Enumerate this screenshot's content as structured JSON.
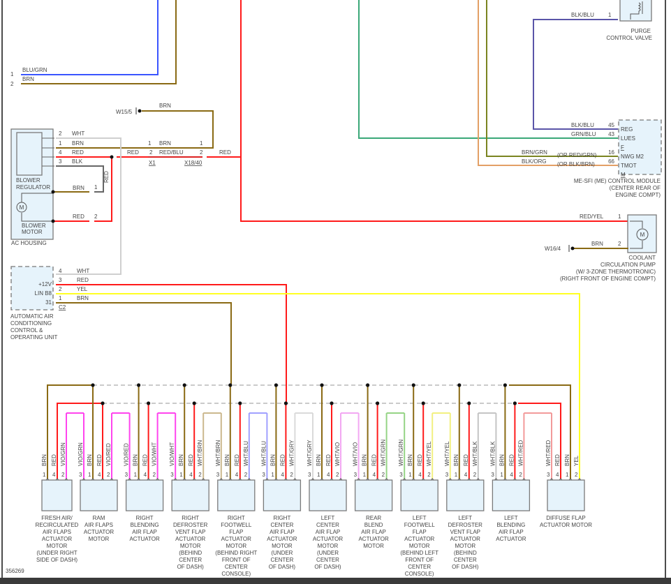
{
  "diagram_id": "356269",
  "colors": {
    "BRN": "#8a6a14",
    "RED": "#ff1a1a",
    "VIO": "#ff44ee",
    "WHT": "#cfcfcf",
    "BLK": "#666666",
    "YEL": "#ffff22",
    "BLU_GRN": "#3a55ff",
    "GRN_BLU": "#3aa878",
    "BLK_BLU": "#5a55a8",
    "BRN_GRN": "#7a8420",
    "BLK_ORG": "#e3a066",
    "WHT_BRN": "#cbb88e",
    "WHT_BLU": "#a0a0ff",
    "WHT_GRY": "#dadada",
    "WHT_VIO": "#f2a8f2",
    "WHT_GRN": "#95d485",
    "WHT_YEL": "#f2f080",
    "WHT_BLK": "#c4c4c4",
    "WHT_RED": "#f29a9a",
    "RED_YEL": "#ff2a00",
    "bus": "#aaaaaa"
  },
  "top_left": {
    "pin1": "1",
    "wire1": "BLU/GRN",
    "pin2": "2",
    "wire2": "BRN"
  },
  "ground1": {
    "label": "W15/5",
    "wire": "BRN"
  },
  "ac_housing": {
    "title": "AC HOUSING",
    "regulator": [
      "BLOWER",
      "REGULATOR"
    ],
    "motor": [
      "BLOWER",
      "MOTOR"
    ],
    "motor_symbol": "M",
    "pins": [
      {
        "pin": "2",
        "wire": "WHT"
      },
      {
        "pin": "1",
        "wire": "BRN"
      },
      {
        "pin": "4",
        "wire": "RED"
      },
      {
        "pin": "3",
        "wire": "BLK"
      }
    ],
    "motor_pin1": {
      "pin": "1",
      "wire": "BRN"
    },
    "motor_pin2": {
      "pin": "2",
      "wire": "RED"
    },
    "vertical_label": "RED"
  },
  "x1": {
    "name": "X1",
    "pin1": "1",
    "pin2": "2",
    "left_red": "RED",
    "brn": "BRN",
    "redblu": "RED/BLU"
  },
  "x18": {
    "name": "X18/40",
    "pin1": "1",
    "pin2": "2",
    "red": "RED"
  },
  "purge": {
    "name": [
      "PURGE",
      "CONTROL VALVE"
    ],
    "pin": "1",
    "wire": "BLK/BLU"
  },
  "ecm": {
    "name": [
      "ME-SFI (ME) CONTROL MODULE",
      "(CENTER REAR OF",
      "ENGINE COMPT)"
    ],
    "rows": [
      {
        "wire": "BLK/BLU",
        "alt": "",
        "pin": "45",
        "signal": "REG"
      },
      {
        "wire": "GRN/BLU",
        "alt": "",
        "pin": "43",
        "signal": "LUES"
      },
      {
        "wire": "",
        "alt": "",
        "pin": "",
        "signal": "F"
      },
      {
        "wire": "BRN/GRN",
        "alt": "(OR RED/GRN)",
        "pin": "16",
        "signal": "NWG M2"
      },
      {
        "wire": "BLK/ORG",
        "alt": "(OR BLK/BRN)",
        "pin": "66",
        "signal": "TMOT"
      },
      {
        "wire": "",
        "alt": "",
        "pin": "",
        "signal": "M"
      }
    ]
  },
  "pump": {
    "name": [
      "COOLANT",
      "CIRCULATION PUMP",
      "(W/ 3-ZONE THERMOTRONIC)",
      "(RIGHT FRONT OF ENGINE COMPT)"
    ],
    "pin1": "1",
    "wire1": "RED/YEL",
    "pin2": "2",
    "wire2": "BRN",
    "ground": "W16/4",
    "motor_symbol": "M"
  },
  "ac_unit": {
    "name": [
      "AUTOMATIC AIR",
      "CONDITIONING",
      "CONTROL &",
      "OPERATING UNIT"
    ],
    "connector": "C2",
    "pins": [
      {
        "pin": "4",
        "wire": "WHT",
        "signal": ""
      },
      {
        "pin": "3",
        "wire": "RED",
        "signal": "+12V"
      },
      {
        "pin": "2",
        "wire": "YEL",
        "signal": "LIN B8"
      },
      {
        "pin": "1",
        "wire": "BRN",
        "signal": "31"
      }
    ]
  },
  "modules": [
    {
      "name": [
        "FRESH AIR/",
        "RECIRCULATED",
        "AIR FLAPS",
        "ACTUATOR",
        "MOTOR",
        "(UNDER RIGHT",
        "SIDE OF DASH)"
      ],
      "pins": [
        {
          "pin": "1",
          "wire": "BRN"
        },
        {
          "pin": "4",
          "wire": "RED"
        },
        {
          "pin": "2",
          "wire": "VIO/GRN"
        }
      ]
    },
    {
      "name": [
        "RAM",
        "AIR FLAPS",
        "ACTUATOR",
        "MOTOR"
      ],
      "pins": [
        {
          "pin": "3",
          "wire": "VIO/GRN"
        },
        {
          "pin": "1",
          "wire": "BRN"
        },
        {
          "pin": "4",
          "wire": "RED"
        },
        {
          "pin": "2",
          "wire": "VIO/RED"
        }
      ]
    },
    {
      "name": [
        "RIGHT",
        "BLENDING",
        "AIR FLAP",
        "ACTUATOR"
      ],
      "pins": [
        {
          "pin": "3",
          "wire": "VIO/RED"
        },
        {
          "pin": "1",
          "wire": "BRN"
        },
        {
          "pin": "4",
          "wire": "RED"
        },
        {
          "pin": "2",
          "wire": "VIO/WHT"
        }
      ]
    },
    {
      "name": [
        "RIGHT",
        "DEFROSTER",
        "VENT FLAP",
        "ACTUATOR",
        "MOTOR",
        "(BEHIND",
        "CENTER",
        "OF DASH)"
      ],
      "pins": [
        {
          "pin": "3",
          "wire": "VIO/WHT"
        },
        {
          "pin": "1",
          "wire": "BRN"
        },
        {
          "pin": "4",
          "wire": "RED"
        },
        {
          "pin": "2",
          "wire": "WHT/BRN"
        }
      ]
    },
    {
      "name": [
        "RIGHT",
        "FOOTWELL",
        "FLAP",
        "ACTUATOR",
        "MOTOR",
        "(BEHIND RIGHT",
        "FRONT OF",
        "CENTER",
        "CONSOLE)"
      ],
      "pins": [
        {
          "pin": "3",
          "wire": "WHT/BRN"
        },
        {
          "pin": "1",
          "wire": "BRN"
        },
        {
          "pin": "4",
          "wire": "RED"
        },
        {
          "pin": "2",
          "wire": "WHT/BLU"
        }
      ]
    },
    {
      "name": [
        "RIGHT",
        "CENTER",
        "AIR FLAP",
        "ACTUATOR",
        "MOTOR",
        "(UNDER",
        "CENTER",
        "OF DASH)"
      ],
      "pins": [
        {
          "pin": "3",
          "wire": "WHT/BLU"
        },
        {
          "pin": "1",
          "wire": "BRN"
        },
        {
          "pin": "4",
          "wire": "RED"
        },
        {
          "pin": "2",
          "wire": "WHT/GRY"
        }
      ]
    },
    {
      "name": [
        "LEFT",
        "CENTER",
        "AIR FLAP",
        "ACTUATOR",
        "MOTOR",
        "(UNDER",
        "CENTER",
        "OF DASH)"
      ],
      "pins": [
        {
          "pin": "3",
          "wire": "WHT/GRY"
        },
        {
          "pin": "1",
          "wire": "BRN"
        },
        {
          "pin": "4",
          "wire": "RED"
        },
        {
          "pin": "2",
          "wire": "WHT/VIO"
        }
      ]
    },
    {
      "name": [
        "REAR",
        "BLEND",
        "AIR FLAP",
        "ACTUATOR",
        "MOTOR"
      ],
      "pins": [
        {
          "pin": "3",
          "wire": "WHT/VIO"
        },
        {
          "pin": "1",
          "wire": "BRN"
        },
        {
          "pin": "4",
          "wire": "RED"
        },
        {
          "pin": "2",
          "wire": "WHT/GRN"
        }
      ]
    },
    {
      "name": [
        "LEFT",
        "FOOTWELL",
        "FLAP",
        "ACTUATOR",
        "MOTOR",
        "(BEHIND LEFT",
        "FRONT OF",
        "CENTER",
        "CONSOLE)"
      ],
      "pins": [
        {
          "pin": "3",
          "wire": "WHT/GRN"
        },
        {
          "pin": "1",
          "wire": "BRN"
        },
        {
          "pin": "4",
          "wire": "RED"
        },
        {
          "pin": "2",
          "wire": "WHT/YEL"
        }
      ]
    },
    {
      "name": [
        "LEFT",
        "DEFROSTER",
        "VENT FLAP",
        "ACTUATOR",
        "MOTOR",
        "(BEHIND",
        "CENTER",
        "OF DASH)"
      ],
      "pins": [
        {
          "pin": "3",
          "wire": "WHT/YEL"
        },
        {
          "pin": "1",
          "wire": "BRN"
        },
        {
          "pin": "4",
          "wire": "RED"
        },
        {
          "pin": "2",
          "wire": "WHT/BLK"
        }
      ]
    },
    {
      "name": [
        "LEFT",
        "BLENDING",
        "AIR FLAP",
        "ACTUATOR"
      ],
      "pins": [
        {
          "pin": "3",
          "wire": "WHT/BLK"
        },
        {
          "pin": "1",
          "wire": "BRN"
        },
        {
          "pin": "4",
          "wire": "RED"
        },
        {
          "pin": "2",
          "wire": "WHT/RED"
        }
      ]
    },
    {
      "name": [
        "DIFFUSE FLAP",
        "ACTUATOR MOTOR"
      ],
      "pins": [
        {
          "pin": "3",
          "wire": "WHT/RED"
        },
        {
          "pin": "4",
          "wire": "RED"
        },
        {
          "pin": "1",
          "wire": "BRN"
        },
        {
          "pin": "2",
          "wire": "YEL"
        }
      ]
    }
  ]
}
